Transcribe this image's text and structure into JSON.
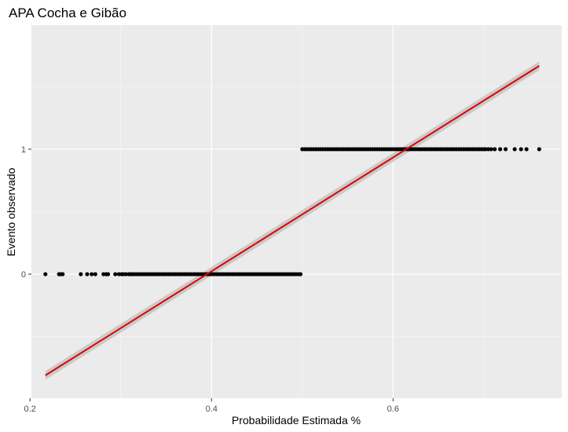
{
  "chart_data": {
    "type": "scatter",
    "title": "APA Cocha e Gibão",
    "xlabel": "Probabilidade Estimada %",
    "ylabel": "Evento observado",
    "xlim": [
      0.2016,
      0.7858
    ],
    "ylim": [
      -0.993,
      1.993
    ],
    "x_ticks": [
      0.2,
      0.4,
      0.6
    ],
    "x_tick_labels": [
      "0.2",
      "0.4",
      "0.6"
    ],
    "y_ticks": [
      0,
      1
    ],
    "y_tick_labels": [
      "0",
      "1"
    ],
    "grid": true,
    "legend": "none",
    "colors": {
      "panel": "#ebebeb",
      "grid_major": "#ffffff",
      "grid_minor": "#f5f5f5",
      "points": "#000000",
      "fit_line": "#e00000",
      "confidence_band": "#bdbdbd",
      "tick_label": "#4d4d4d",
      "tick_mark": "#333333"
    },
    "series": [
      {
        "kind": "points",
        "y": 0,
        "x_sparse": [
          0.217,
          0.232,
          0.234,
          0.236,
          0.256,
          0.263,
          0.268,
          0.272,
          0.281,
          0.284,
          0.286,
          0.294,
          0.298,
          0.301,
          0.303,
          0.306,
          0.309,
          0.311
        ],
        "x_dense_range": [
          0.313,
          0.5
        ]
      },
      {
        "kind": "points",
        "y": 1,
        "x_dense_range": [
          0.5,
          0.7
        ],
        "x_sparse": [
          0.702,
          0.705,
          0.708,
          0.712,
          0.718,
          0.724,
          0.734,
          0.741,
          0.747,
          0.761
        ]
      },
      {
        "kind": "fit_line",
        "x": [
          0.217,
          0.761
        ],
        "y": [
          -0.81,
          1.667
        ],
        "band_halfwidth": 0.035
      }
    ]
  }
}
